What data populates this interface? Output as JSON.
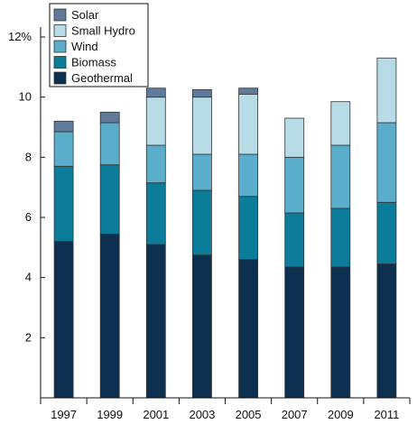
{
  "chart_data": {
    "type": "bar",
    "stacked": true,
    "categories": [
      "1997",
      "1999",
      "2001",
      "2003",
      "2005",
      "2007",
      "2009",
      "2011"
    ],
    "series": [
      {
        "name": "Geothermal",
        "color": "#0d3050",
        "values": [
          5.2,
          5.45,
          5.1,
          4.75,
          4.6,
          4.35,
          4.35,
          4.45
        ]
      },
      {
        "name": "Biomass",
        "color": "#0b7c9a",
        "values": [
          2.5,
          2.3,
          2.05,
          2.15,
          2.1,
          1.8,
          1.95,
          2.05
        ]
      },
      {
        "name": "Wind",
        "color": "#5aaecb",
        "values": [
          1.15,
          1.4,
          1.25,
          1.2,
          1.4,
          1.85,
          2.1,
          2.65
        ]
      },
      {
        "name": "Small Hydro",
        "color": "#b8dbe8",
        "values": [
          0,
          0,
          1.6,
          1.9,
          2.0,
          1.3,
          1.45,
          2.15
        ]
      },
      {
        "name": "Solar",
        "color": "#607a9a",
        "values": [
          0.35,
          0.35,
          0.3,
          0.25,
          0.2,
          0,
          0,
          0
        ]
      }
    ],
    "legend_order": [
      "Solar",
      "Small Hydro",
      "Wind",
      "Biomass",
      "Geothermal"
    ],
    "yticks": [
      "2",
      "4",
      "6",
      "8",
      "10",
      "12%"
    ],
    "ylim": [
      0,
      12
    ],
    "grid": false,
    "legend_position": "top-left",
    "title": "",
    "xlabel": "",
    "ylabel": ""
  }
}
